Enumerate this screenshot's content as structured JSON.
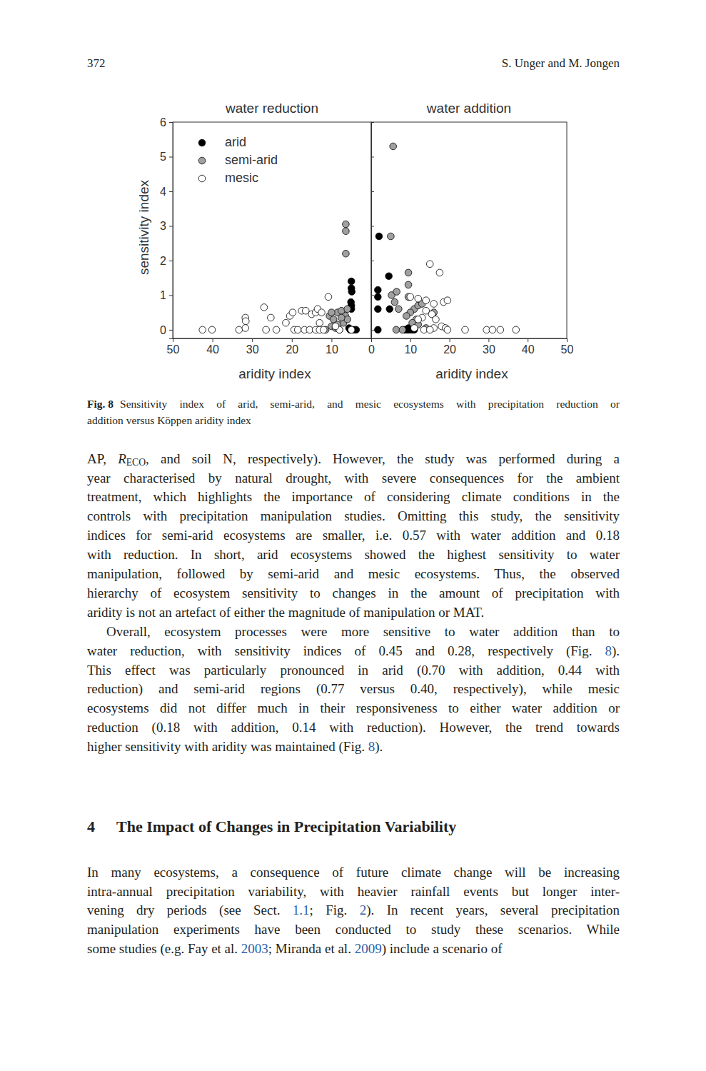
{
  "page": {
    "header": {
      "page_number": "372",
      "authors": "S. Unger and M. Jongen"
    },
    "caption": {
      "label": "Fig. 8",
      "lines": [
        "Sensitivity index of arid, semi-arid, and mesic ecosystems with precipitation reduction or",
        "addition versus Köppen aridity index"
      ]
    },
    "body": [
      {
        "lines": [
          [
            {
              "text": "AP, ",
              "style": "normal"
            },
            {
              "text": "R",
              "style": "italic"
            },
            {
              "text": "ECO",
              "style": "sub"
            },
            {
              "text": ", and soil N, respectively). However, the study was performed during a",
              "style": "normal"
            }
          ],
          "year characterised by natural drought, with severe consequences for the ambient",
          "treatment, which highlights the importance of considering climate conditions in the",
          "controls with precipitation manipulation studies. Omitting this study, the sensitivity",
          "indices for semi-arid ecosystems are smaller, i.e. 0.57 with water addition and 0.18",
          "with reduction. In short, arid ecosystems showed the highest sensitivity to water",
          "manipulation, followed by semi-arid and mesic ecosystems. Thus, the observed",
          "hierarchy of ecosystem sensitivity to changes in the amount of precipitation with",
          "aridity is not an artefact of either the magnitude of manipulation or MAT."
        ]
      },
      {
        "lines": [
          "Overall, ecosystem processes were more sensitive to water addition than to",
          [
            {
              "text": "water reduction, with sensitivity indices of 0.45 and 0.28, respectively (Fig. ",
              "style": "normal"
            },
            {
              "text": "8",
              "style": "link"
            },
            {
              "text": ").",
              "style": "normal"
            }
          ],
          "This effect was particularly pronounced in arid (0.70 with addition, 0.44 with",
          "reduction) and semi-arid regions (0.77 versus 0.40, respectively), while mesic",
          "ecosystems did not differ much in their responsiveness to either water addition or",
          "reduction (0.18 with addition, 0.14 with reduction). However, the trend towards",
          [
            {
              "text": "higher sensitivity with aridity was maintained (Fig. ",
              "style": "normal"
            },
            {
              "text": "8",
              "style": "link"
            },
            {
              "text": ").",
              "style": "normal"
            }
          ]
        ]
      }
    ],
    "section": {
      "number": "4",
      "title": "The Impact of Changes in Precipitation Variability"
    },
    "section_body": [
      {
        "lines": [
          "In many ecosystems, a consequence of future climate change will be increasing",
          "intra-annual precipitation variability, with heavier rainfall events but longer inter-",
          [
            {
              "text": "vening dry periods (see Sect. ",
              "style": "normal"
            },
            {
              "text": "1.1",
              "style": "link"
            },
            {
              "text": "; Fig. ",
              "style": "normal"
            },
            {
              "text": "2",
              "style": "link"
            },
            {
              "text": "). In recent years, several precipitation",
              "style": "normal"
            }
          ],
          "manipulation experiments have been conducted to study these scenarios. While",
          [
            {
              "text": "some studies (e.g. Fay et al. ",
              "style": "normal"
            },
            {
              "text": "2003",
              "style": "link"
            },
            {
              "text": "; Miranda et al. ",
              "style": "normal"
            },
            {
              "text": "2009",
              "style": "link"
            },
            {
              "text": ") include a scenario of",
              "style": "normal"
            }
          ]
        ]
      }
    ]
  },
  "chart_data": [
    {
      "type": "scatter",
      "title": "water reduction",
      "x_label": "aridity index",
      "y_label": "sensitivity index",
      "xlim": [
        50,
        0
      ],
      "xticks": [
        50,
        40,
        30,
        20,
        10,
        0
      ],
      "ylim": [
        -0.25,
        6
      ],
      "yticks": [
        0,
        1,
        2,
        3,
        4,
        5,
        6
      ],
      "legend": "upper left",
      "series": [
        {
          "name": "arid",
          "color": "#000000",
          "marker": "circle",
          "x": [
            5.0,
            5.0,
            4.9,
            5.1,
            5.0,
            5.0,
            4.8,
            5.3,
            4.3,
            3.8,
            5.6,
            5.2
          ],
          "values": [
            1.4,
            1.2,
            1.1,
            0.8,
            0.6,
            0.7,
            0,
            0,
            0,
            0,
            0.05,
            0
          ]
        },
        {
          "name": "semi-arid",
          "color": "#a0a0a0",
          "marker": "circle",
          "x": [
            6.4,
            6.4,
            6.4,
            10.5,
            9.5,
            8.5,
            7.5,
            6.0,
            6.5,
            7.0,
            10.0,
            9.0,
            8.0,
            11.5,
            6.0,
            7.5,
            8.5,
            10.0
          ],
          "values": [
            3.05,
            2.85,
            2.2,
            0.4,
            0.3,
            0.5,
            0.55,
            0.6,
            0.4,
            0.2,
            0.1,
            0.05,
            0,
            0,
            0.3,
            0.35,
            0.15,
            0.5
          ]
        },
        {
          "name": "mesic",
          "color": "#ffffff",
          "marker": "circle",
          "x": [
            42.5,
            40.1,
            33.3,
            31.7,
            31.7,
            31.6,
            26.5,
            23.9,
            19.4,
            18.5,
            16.8,
            15.5,
            14.0,
            13.0,
            12.0,
            21.5,
            20.5,
            19.8,
            17.5,
            16.5,
            15.0,
            14.0,
            13.5,
            12.5,
            10.8,
            8.0,
            9.0,
            27.0,
            25.3,
            5.0,
            13.0
          ],
          "values": [
            0,
            0,
            0,
            0.05,
            0.35,
            0.25,
            0,
            0,
            0,
            0,
            0,
            0,
            0,
            0,
            0,
            0.2,
            0.4,
            0.5,
            0.55,
            0.55,
            0.45,
            0.5,
            0.6,
            0.5,
            0.95,
            0,
            0.1,
            0.65,
            0.35,
            0,
            0.2
          ]
        }
      ]
    },
    {
      "type": "scatter",
      "title": "water addition",
      "x_label": "aridity index",
      "xlim": [
        0,
        50
      ],
      "xticks": [
        10,
        20,
        30,
        40,
        50
      ],
      "ylim": [
        -0.25,
        6
      ],
      "yticks": [
        0,
        1,
        2,
        3,
        4,
        5,
        6
      ],
      "tick_labels": "x",
      "series": [
        {
          "color": "#000000",
          "marker": "circle",
          "x": [
            2.0,
            1.7,
            1.7,
            1.7,
            1.7,
            4.5,
            4.7,
            8.5,
            9.0,
            9.5,
            10.0,
            10.5,
            11.0,
            9.5
          ],
          "values": [
            2.7,
            1.15,
            0.95,
            0.6,
            0.0,
            1.55,
            0.6,
            0,
            0,
            0,
            0,
            0,
            0,
            0.05
          ]
        },
        {
          "color": "#a0a0a0",
          "marker": "circle",
          "x": [
            5.6,
            5.0,
            9.5,
            9.5,
            9.5,
            5.2,
            6.5,
            7.0,
            6.0,
            11.0,
            10.0,
            9.0,
            12.0,
            13.0,
            11.5,
            10.5,
            12.0,
            6.4,
            8.0,
            14.0,
            16.0
          ],
          "values": [
            5.3,
            2.7,
            1.65,
            1.3,
            0.95,
            1.0,
            1.1,
            0.6,
            0.8,
            0.6,
            0.5,
            0.4,
            0.7,
            0.75,
            0.3,
            0.2,
            0.15,
            0,
            0,
            0.05,
            0.5
          ]
        },
        {
          "color": "#ffffff",
          "marker": "circle",
          "x": [
            15.0,
            17.5,
            10.0,
            12.0,
            14.0,
            16.0,
            18.5,
            19.5,
            14.0,
            15.5,
            13.0,
            12.0,
            16.0,
            18.0,
            19.0,
            13.5,
            15.0,
            19.5,
            24.0,
            29.5,
            31.0,
            33.0,
            37.0,
            11.0,
            16.5
          ],
          "values": [
            1.9,
            1.65,
            0.95,
            0.9,
            0.85,
            0.75,
            0.8,
            0.85,
            0.55,
            0.45,
            0.35,
            0.3,
            0.05,
            0.1,
            0.05,
            0,
            0,
            0,
            0,
            0,
            0,
            0,
            0,
            0.05,
            0.3
          ]
        }
      ]
    }
  ]
}
